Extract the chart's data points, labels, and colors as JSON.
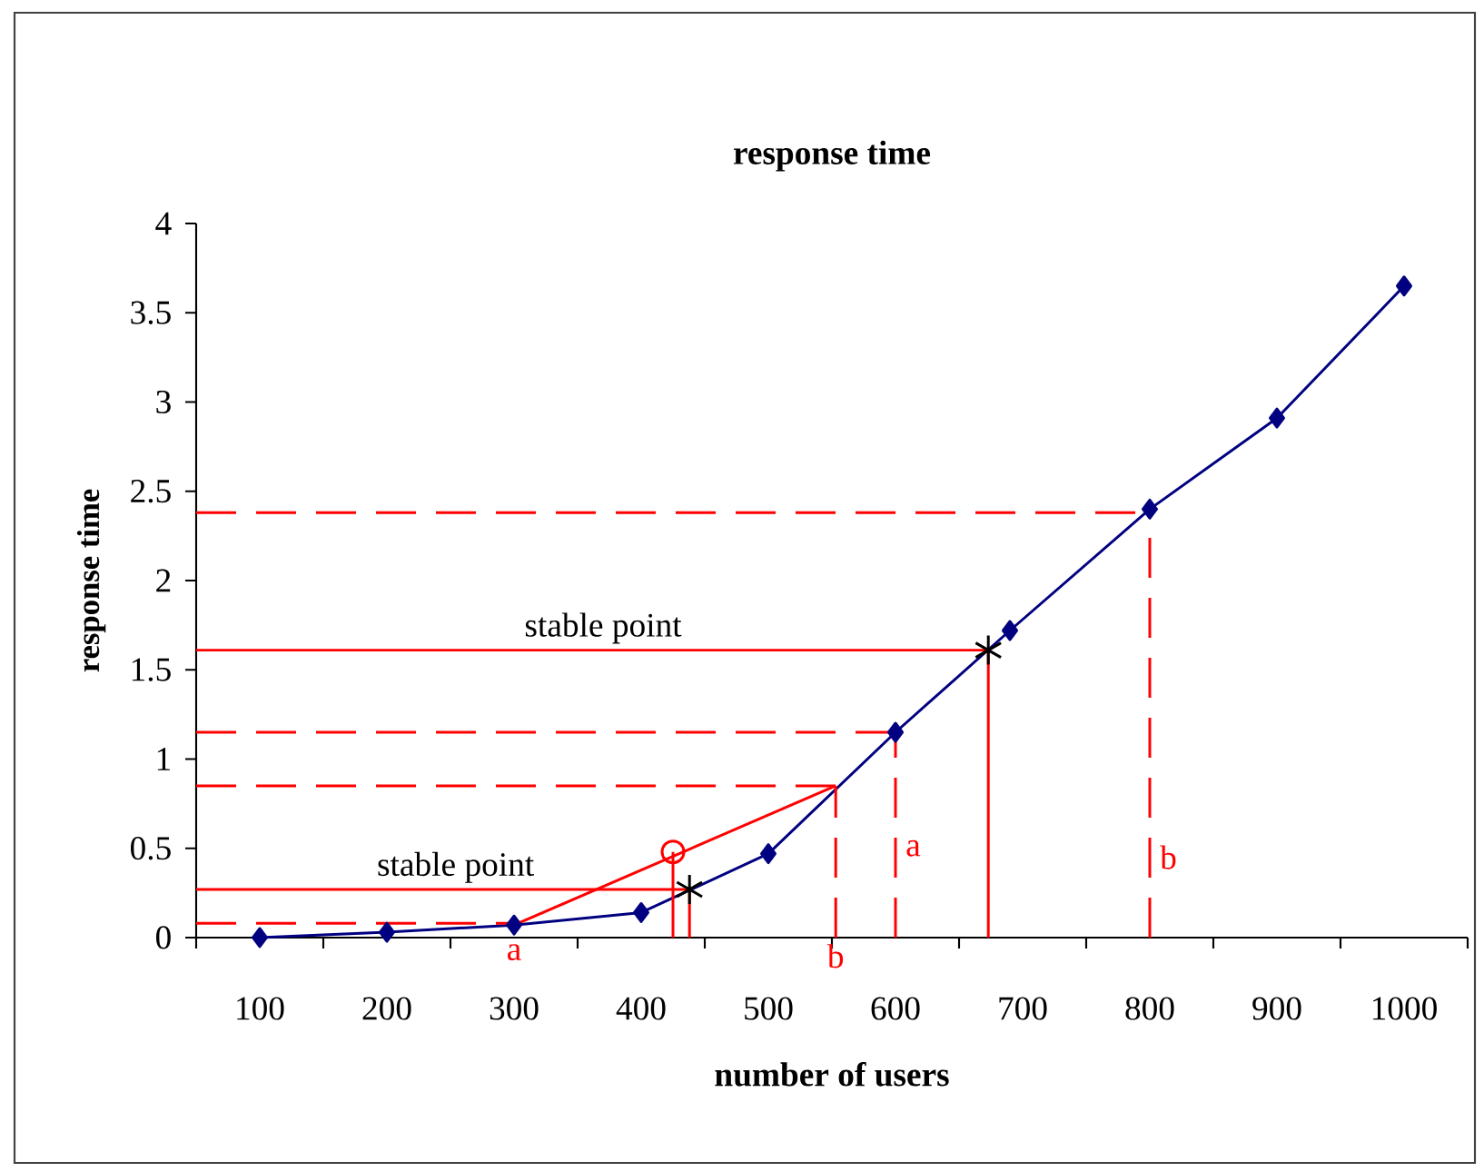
{
  "chart_data": {
    "type": "line",
    "title": "response time",
    "xlabel": "number of users",
    "ylabel": "response time",
    "xlim": [
      50,
      1050
    ],
    "ylim": [
      0,
      4
    ],
    "xticks": [
      {
        "value": 50,
        "label": null
      },
      {
        "value": 100,
        "label": "100"
      },
      {
        "value": 150,
        "label": null
      },
      {
        "value": 200,
        "label": "200"
      },
      {
        "value": 250,
        "label": null
      },
      {
        "value": 300,
        "label": "300"
      },
      {
        "value": 350,
        "label": null
      },
      {
        "value": 400,
        "label": "400"
      },
      {
        "value": 450,
        "label": null
      },
      {
        "value": 500,
        "label": "500"
      },
      {
        "value": 550,
        "label": null
      },
      {
        "value": 600,
        "label": "600"
      },
      {
        "value": 650,
        "label": null
      },
      {
        "value": 700,
        "label": "700"
      },
      {
        "value": 750,
        "label": null
      },
      {
        "value": 800,
        "label": "800"
      },
      {
        "value": 850,
        "label": null
      },
      {
        "value": 900,
        "label": "900"
      },
      {
        "value": 950,
        "label": null
      },
      {
        "value": 1000,
        "label": "1000"
      },
      {
        "value": 1050,
        "label": null
      }
    ],
    "yticks": [
      0,
      0.5,
      1,
      1.5,
      2,
      2.5,
      3,
      3.5,
      4
    ],
    "grid": false,
    "series": [
      {
        "color": "#000080",
        "marker": "diamond",
        "line_style": "solid",
        "x": [
          100,
          200,
          300,
          400,
          500,
          600,
          690,
          800,
          900,
          1000
        ],
        "values": [
          0,
          0.03,
          0.07,
          0.14,
          0.47,
          1.15,
          1.72,
          2.4,
          2.91,
          3.65
        ]
      },
      {
        "color": "#ff0000",
        "marker": "none",
        "line_style": "solid",
        "x": [
          300,
          553
        ],
        "values": [
          0.07,
          0.85
        ]
      },
      {
        "color": "#ff0000",
        "marker": "none",
        "line_style": "dashed",
        "x": [
          50,
          300
        ],
        "values": [
          0.08,
          0.08
        ]
      },
      {
        "color": "#ff0000",
        "marker": "none",
        "line_style": "dashed",
        "x": [
          50,
          553
        ],
        "values": [
          0.85,
          0.85
        ]
      },
      {
        "color": "#ff0000",
        "marker": "none",
        "line_style": "dashed",
        "x": [
          50,
          600
        ],
        "values": [
          1.15,
          1.15
        ]
      },
      {
        "color": "#ff0000",
        "marker": "none",
        "line_style": "dashed",
        "x": [
          50,
          800
        ],
        "values": [
          2.38,
          2.38
        ]
      },
      {
        "color": "#ff0000",
        "marker": "none",
        "line_style": "solid",
        "x": [
          50,
          673
        ],
        "values": [
          1.61,
          1.61
        ]
      },
      {
        "color": "#ff0000",
        "marker": "none",
        "line_style": "solid",
        "x": [
          50,
          438
        ],
        "values": [
          0.27,
          0.27
        ]
      },
      {
        "color": "#ff0000",
        "marker": "none",
        "line_style": "solid",
        "x": [
          425,
          425
        ],
        "values": [
          0,
          0.48
        ]
      },
      {
        "color": "#ff0000",
        "marker": "none",
        "line_style": "solid",
        "x": [
          438,
          438
        ],
        "values": [
          0,
          0.27
        ]
      },
      {
        "color": "#ff0000",
        "marker": "none",
        "line_style": "dashed",
        "x": [
          553,
          553
        ],
        "values": [
          0,
          0.85
        ]
      },
      {
        "color": "#ff0000",
        "marker": "none",
        "line_style": "dashed",
        "x": [
          600,
          600
        ],
        "values": [
          0,
          1.15
        ]
      },
      {
        "color": "#ff0000",
        "marker": "none",
        "line_style": "solid",
        "x": [
          673,
          673
        ],
        "values": [
          0,
          1.61
        ]
      },
      {
        "color": "#ff0000",
        "marker": "none",
        "line_style": "dashed",
        "x": [
          800,
          800
        ],
        "values": [
          0,
          2.38
        ]
      },
      {
        "type": "scatter",
        "color": "#ff0000",
        "marker": "circle",
        "x": [
          425
        ],
        "values": [
          0.48
        ]
      },
      {
        "type": "scatter",
        "color": "#000000",
        "marker": "cross",
        "x": [
          438,
          673
        ],
        "values": [
          0.27,
          1.61
        ]
      }
    ],
    "annotations": [
      {
        "text": "stable point",
        "x": 370,
        "y": 1.61
      },
      {
        "text": "stable point",
        "x": 254,
        "y": 0.27
      },
      {
        "text": "a",
        "x": 300,
        "y": 0
      },
      {
        "text": "b",
        "x": 553,
        "y": 0
      },
      {
        "text": "a",
        "x": 600,
        "y": 0.5
      },
      {
        "text": "b",
        "x": 800,
        "y": 0.45
      }
    ]
  }
}
